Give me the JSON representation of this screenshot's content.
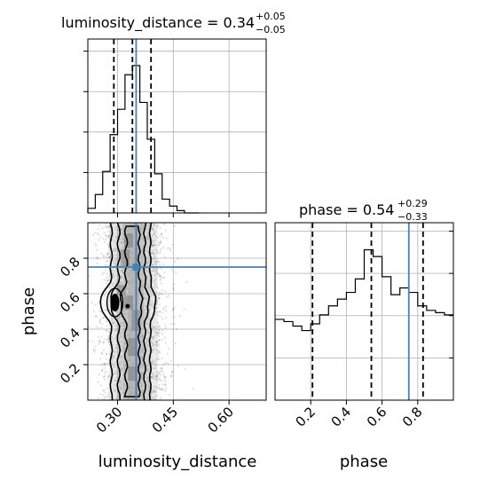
{
  "chart_data": {
    "type": "corner",
    "parameters": [
      "luminosity_distance",
      "phase"
    ],
    "truth": {
      "luminosity_distance": 0.35,
      "phase": 0.75
    },
    "truth_color": "#4682b4",
    "titles": [
      {
        "param": "luminosity_distance",
        "text": "luminosity_distance = 0.34",
        "plus": "+0.05",
        "minus": "−0.05"
      },
      {
        "param": "phase",
        "text": "phase = 0.54",
        "plus": "+0.29",
        "minus": "−0.33"
      }
    ],
    "quantiles": {
      "luminosity_distance": [
        0.29,
        0.34,
        0.39
      ],
      "phase": [
        0.21,
        0.54,
        0.83
      ]
    },
    "hist_luminosity_distance": {
      "range": [
        0.22,
        0.7
      ],
      "edges": [
        0.22,
        0.24,
        0.26,
        0.28,
        0.3,
        0.32,
        0.34,
        0.36,
        0.38,
        0.4,
        0.42,
        0.44,
        0.46,
        0.48,
        0.5,
        0.52
      ],
      "counts": [
        2,
        8,
        18,
        34,
        45,
        60,
        64,
        48,
        32,
        17,
        6,
        3,
        1,
        0,
        0
      ]
    },
    "hist_phase": {
      "range": [
        0.0,
        1.0
      ],
      "edges": [
        0.0,
        0.05,
        0.1,
        0.15,
        0.2,
        0.25,
        0.3,
        0.35,
        0.4,
        0.45,
        0.5,
        0.55,
        0.6,
        0.65,
        0.7,
        0.75,
        0.8,
        0.85,
        0.9,
        0.95,
        1.0
      ],
      "counts": [
        36,
        35,
        33,
        31,
        34,
        38,
        42,
        45,
        48,
        54,
        67,
        64,
        55,
        47,
        50,
        48,
        42,
        40,
        39,
        38
      ]
    },
    "joint": {
      "x_range": [
        0.22,
        0.7
      ],
      "y_range": [
        0.0,
        1.0
      ]
    },
    "ticks_luminosity_distance": [
      "0.30",
      "0.45",
      "0.60"
    ],
    "ticks_luminosity_distance_values": [
      0.3,
      0.45,
      0.6
    ],
    "ticks_phase": [
      "0.2",
      "0.4",
      "0.6",
      "0.8"
    ],
    "ticks_phase_values": [
      0.2,
      0.4,
      0.6,
      0.8
    ],
    "xlabel_left": "luminosity_distance",
    "xlabel_right": "phase",
    "ylabel": "phase",
    "grid": true
  }
}
